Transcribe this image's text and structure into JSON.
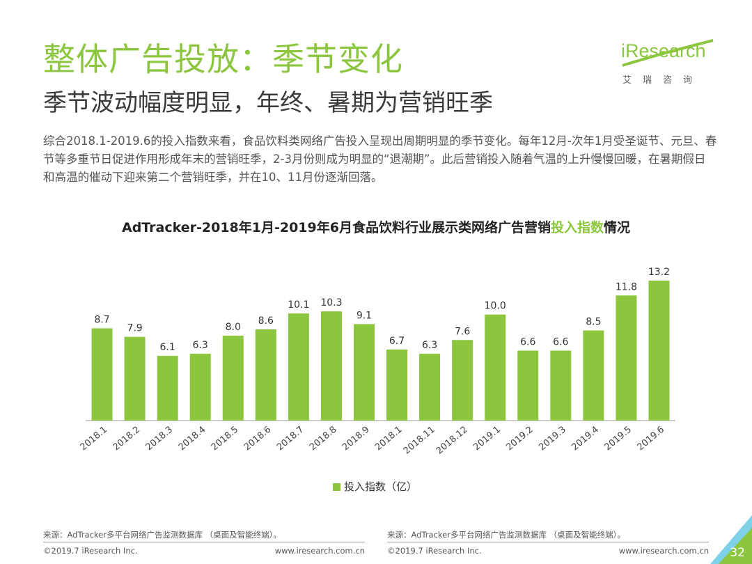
{
  "header": {
    "title": "整体广告投放：季节变化",
    "subtitle": "季节波动幅度明显，年终、暑期为营销旺季",
    "description": "综合2018.1-2019.6的投入指数来看，食品饮料类网络广告投入呈现出周期明显的季节变化。每年12月-次年1月受圣诞节、元旦、春节等多重节日促进作用形成年末的营销旺季，2-3月份则成为明显的“退潮期”。此后营销投入随着气温的上升慢慢回暖，在暑期假日和高温的催动下迎来第二个营销旺季，并在10、11月份逐渐回落。"
  },
  "logo": {
    "text": "iResearch",
    "sub": "艾瑞咨询"
  },
  "chart_title": {
    "prefix": "AdTracker-2018年1月-2019年6月食品饮料行业展示类网络广告营销",
    "highlight": "投入指数",
    "suffix": "情况"
  },
  "chart_data": {
    "type": "bar",
    "title": "AdTracker-2018年1月-2019年6月食品饮料行业展示类网络广告营销投入指数情况",
    "categories": [
      "2018.1",
      "2018.2",
      "2018.3",
      "2018.4",
      "2018.5",
      "2018.6",
      "2018.7",
      "2018.8",
      "2018.9",
      "2018.1",
      "2018.11",
      "2018.12",
      "2019.1",
      "2019.2",
      "2019.3",
      "2019.4",
      "2019.5",
      "2019.6"
    ],
    "series": [
      {
        "name": "投入指数（亿）",
        "values": [
          8.7,
          7.9,
          6.1,
          6.3,
          8.0,
          8.6,
          10.1,
          10.3,
          9.1,
          6.7,
          6.3,
          7.6,
          10.0,
          6.6,
          6.6,
          8.5,
          11.8,
          13.2
        ],
        "color": "#8cc63f"
      }
    ],
    "ylim": [
      0,
      13.2
    ],
    "grid": false,
    "legend": "bottom"
  },
  "legend_label": "投入指数（亿）",
  "footer": {
    "source": "来源：AdTracker多平台网络广告监测数据库 （桌面及智能终端）。",
    "copyright": "©2019.7 iResearch Inc.",
    "url": "www.iresearch.com.cn"
  },
  "page_number": "32"
}
